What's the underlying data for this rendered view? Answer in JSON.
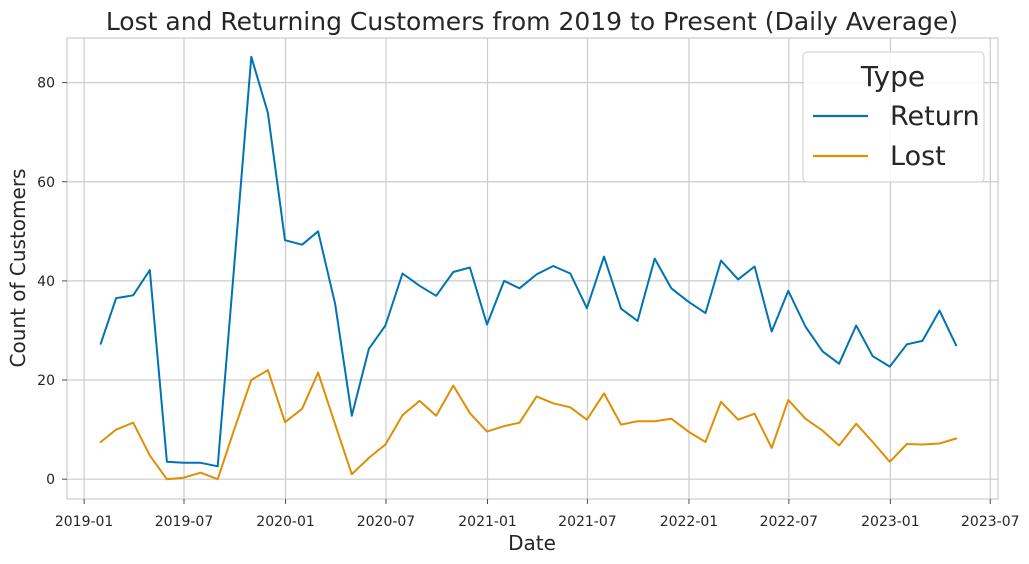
{
  "chart_data": {
    "type": "line",
    "title": "Lost and Returning Customers from 2019 to Present (Daily Average)",
    "xlabel": "Date",
    "ylabel": "Count of Customers",
    "xlim": [
      "2018-12-01",
      "2023-07-15"
    ],
    "ylim": [
      -4,
      89
    ],
    "x_ticks": [
      "2019-01",
      "2019-07",
      "2020-01",
      "2020-07",
      "2021-01",
      "2021-07",
      "2022-01",
      "2022-07",
      "2023-01",
      "2023-07"
    ],
    "y_ticks": [
      0,
      20,
      40,
      60,
      80
    ],
    "grid": true,
    "legend": {
      "title": "Type",
      "position": "top-right"
    },
    "x": [
      "2019-01-31",
      "2019-02-28",
      "2019-03-31",
      "2019-04-30",
      "2019-05-31",
      "2019-06-30",
      "2019-07-31",
      "2019-08-31",
      "2019-09-30",
      "2019-10-31",
      "2019-11-30",
      "2019-12-31",
      "2020-01-31",
      "2020-02-29",
      "2020-03-31",
      "2020-04-30",
      "2020-05-31",
      "2020-06-30",
      "2020-07-31",
      "2020-08-31",
      "2020-09-30",
      "2020-10-31",
      "2020-11-30",
      "2020-12-31",
      "2021-01-31",
      "2021-02-28",
      "2021-03-31",
      "2021-04-30",
      "2021-05-31",
      "2021-06-30",
      "2021-07-31",
      "2021-08-31",
      "2021-09-30",
      "2021-10-31",
      "2021-11-30",
      "2021-12-31",
      "2022-01-31",
      "2022-02-28",
      "2022-03-31",
      "2022-04-30",
      "2022-05-31",
      "2022-06-30",
      "2022-07-31",
      "2022-08-31",
      "2022-09-30",
      "2022-10-31",
      "2022-11-30",
      "2022-12-31",
      "2023-01-31",
      "2023-02-28",
      "2023-03-31",
      "2023-04-30"
    ],
    "series": [
      {
        "name": "Return",
        "color": "#0173b2",
        "values": [
          27.3,
          36.5,
          37.1,
          42.2,
          3.5,
          3.3,
          3.3,
          2.6,
          43.0,
          85.2,
          73.9,
          48.2,
          47.3,
          50.0,
          35.3,
          12.8,
          26.3,
          31.0,
          41.5,
          39.0,
          37.0,
          41.8,
          42.7,
          31.2,
          40.0,
          38.5,
          41.3,
          43.0,
          41.5,
          34.5,
          44.9,
          34.4,
          31.9,
          44.5,
          38.5,
          35.8,
          33.5,
          44.1,
          40.3,
          42.9,
          29.8,
          38.0,
          30.8,
          25.8,
          23.3,
          31.0,
          24.8,
          22.7,
          27.2,
          27.9,
          34.0,
          27.0
        ]
      },
      {
        "name": "Lost",
        "color": "#de8f05",
        "values": [
          7.5,
          10.0,
          11.4,
          4.8,
          0.0,
          0.3,
          1.3,
          0.0,
          10.0,
          20.0,
          22.0,
          11.5,
          14.2,
          21.5,
          11.0,
          1.0,
          4.3,
          7.0,
          12.9,
          15.8,
          12.8,
          18.9,
          13.3,
          9.6,
          10.7,
          11.4,
          16.7,
          15.3,
          14.5,
          12.0,
          17.3,
          11.0,
          11.7,
          11.7,
          12.2,
          9.6,
          7.5,
          15.6,
          12.0,
          13.2,
          6.3,
          16.0,
          12.2,
          9.8,
          6.8,
          11.2,
          7.5,
          3.5,
          7.1,
          7.0,
          7.2,
          8.2
        ]
      }
    ]
  }
}
